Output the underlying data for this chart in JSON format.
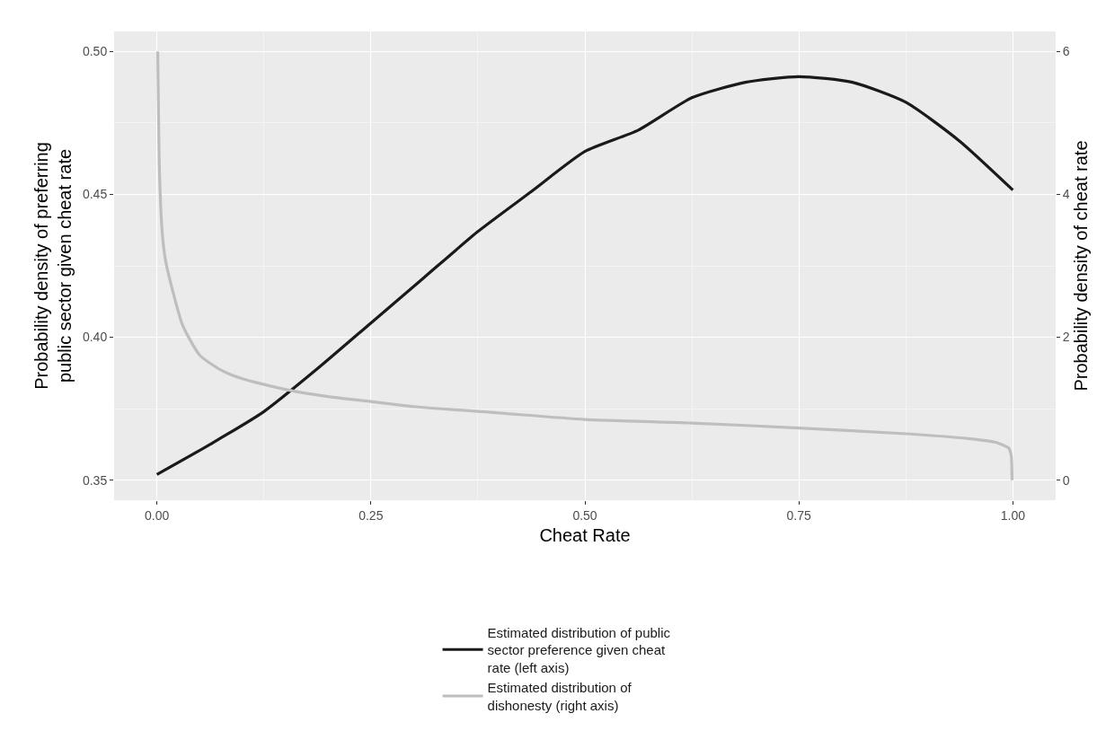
{
  "chart_data": {
    "type": "line",
    "xlabel": "Cheat Rate",
    "ylabel": "Probability density of preferring public sector given cheat rate",
    "y2label": "Probability density of cheat rate",
    "xlim": [
      -0.05,
      1.05
    ],
    "xticks": [
      {
        "value": 0,
        "label": "0.00"
      },
      {
        "value": 0.25,
        "label": "0.25"
      },
      {
        "value": 0.5,
        "label": "0.50"
      },
      {
        "value": 0.75,
        "label": "0.75"
      },
      {
        "value": 1,
        "label": "1.00"
      }
    ],
    "ylim": [
      0.343,
      0.507
    ],
    "yticks": [
      {
        "value": 0.35,
        "label": "0.35"
      },
      {
        "value": 0.4,
        "label": "0.40"
      },
      {
        "value": 0.45,
        "label": "0.45"
      },
      {
        "value": 0.5,
        "label": "0.50"
      }
    ],
    "y2lim": [
      -0.28,
      6.28
    ],
    "y2ticks": [
      0,
      2,
      4,
      6
    ],
    "grid": true,
    "legend": "bottom",
    "series": [
      {
        "name": "Estimated distribution of public sector preference given cheat rate (left axis)",
        "color": "#1a1a1a",
        "x": [
          0,
          0.0625,
          0.125,
          0.1875,
          0.25,
          0.3125,
          0.375,
          0.4375,
          0.5,
          0.5625,
          0.625,
          0.6875,
          0.75,
          0.8125,
          0.875,
          0.9375,
          1.0
        ],
        "values": [
          0.352,
          0.3626,
          0.374,
          0.389,
          0.405,
          0.421,
          0.437,
          0.451,
          0.465,
          0.4725,
          0.4838,
          0.4892,
          0.4912,
          0.4892,
          0.4822,
          0.4687,
          0.4515
        ]
      },
      {
        "name": "Estimated distribution of dishonesty (right axis)",
        "color": "#bebebe",
        "axis": "y2",
        "x": [
          0.001,
          0.003,
          0.006,
          0.01,
          0.02,
          0.03,
          0.05,
          0.075,
          0.1,
          0.15,
          0.2,
          0.25,
          0.3,
          0.4,
          0.5,
          0.625,
          0.75,
          0.875,
          0.95,
          0.98,
          0.995,
          0.998,
          0.999
        ],
        "values": [
          6,
          4.33,
          3.5,
          3.08,
          2.58,
          2.17,
          1.75,
          1.54,
          1.42,
          1.27,
          1.17,
          1.1,
          1.03,
          0.94,
          0.85,
          0.8,
          0.73,
          0.65,
          0.58,
          0.53,
          0.45,
          0.35,
          0
        ]
      }
    ]
  }
}
